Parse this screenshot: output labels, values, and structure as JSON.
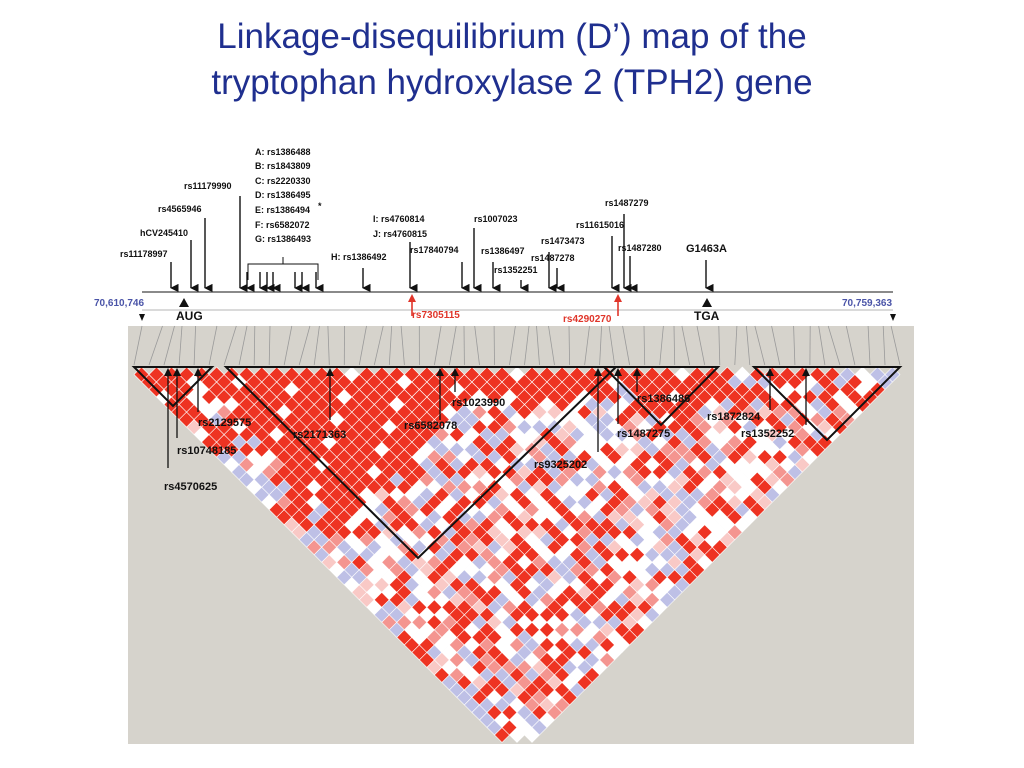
{
  "title": {
    "line1": "Linkage-disequilibrium (D’) map of the",
    "line2": "tryptophan hydroxylase 2 (TPH2) gene"
  },
  "gene_map": {
    "start_position": "70,610,746",
    "end_position": "70,759,363",
    "start_codon": "AUG",
    "stop_codon": "TGA",
    "asterisk": "*",
    "legend": [
      "A: rs1386488",
      "B: rs1843809",
      "C: rs2220330",
      "D: rs1386495",
      "E: rs1386494",
      "F: rs6582072",
      "G: rs1386493"
    ],
    "snp_labels": [
      "rs11179990",
      "rs4565946",
      "hCV245410",
      "rs11178997",
      "H: rs1386492",
      "I: rs4760814",
      "J: rs4760815",
      "rs17840794",
      "rs1007023",
      "rs1386497",
      "rs1352251",
      "rs1473473",
      "rs1487278",
      "rs11615016",
      "rs1487279",
      "rs1487280",
      "G1463A"
    ],
    "red_labels": [
      "rs7305115",
      "rs4290270"
    ]
  },
  "ld_map": {
    "colors": {
      "strong": "#ee3322",
      "medium": "#f49590",
      "light": "#f9c9c6",
      "blue": "#bec0e6",
      "white": "#ffffff",
      "background": "#d6d3cc"
    },
    "snp_annotations": [
      "rs2129575",
      "rs10748185",
      "rs4570625",
      "rs2171363",
      "rs6582078",
      "rs1023990",
      "rs9325202",
      "rs1487275",
      "rs1386486",
      "rs1872824",
      "rs1352252"
    ]
  }
}
